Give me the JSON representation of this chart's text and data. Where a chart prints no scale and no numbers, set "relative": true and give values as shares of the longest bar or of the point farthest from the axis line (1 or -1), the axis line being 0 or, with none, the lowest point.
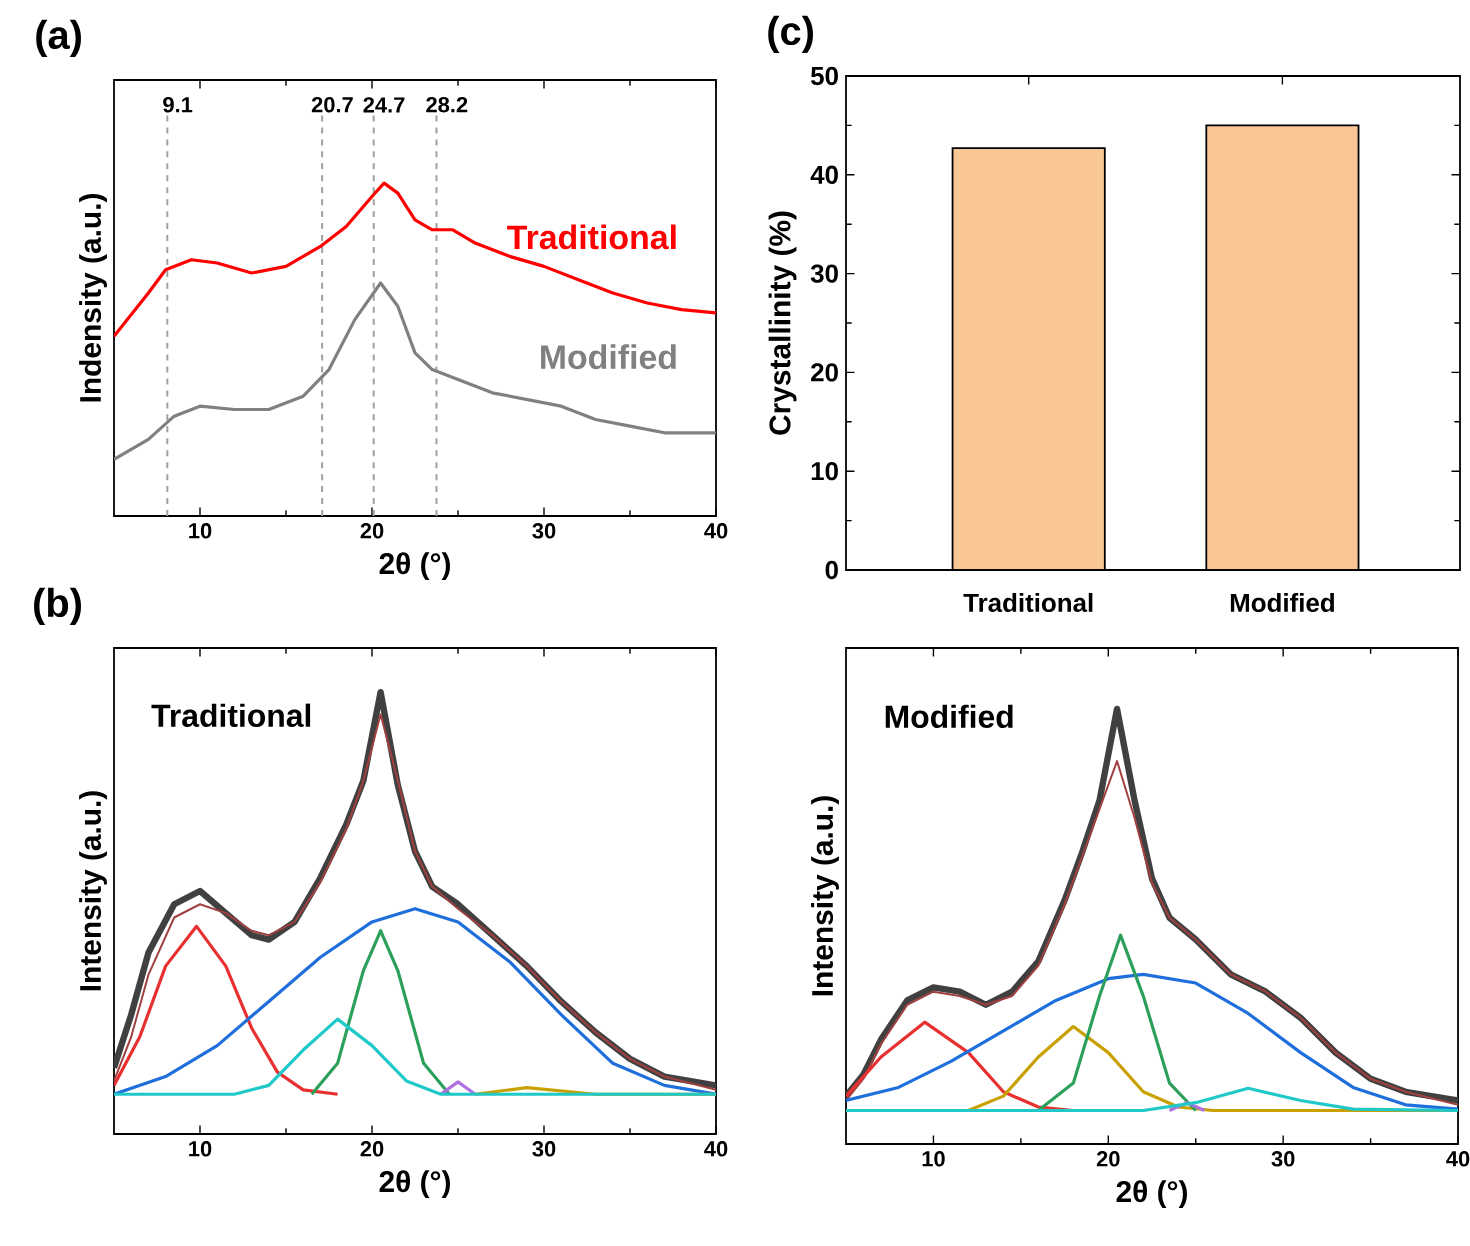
{
  "chart_data": [
    {
      "type": "line",
      "title": "(a)",
      "xlabel": "2θ (°)",
      "ylabel": "Indensity (a.u.)",
      "relative": true,
      "tick_labels": "x",
      "xlim": [
        5,
        40
      ],
      "xticks": [
        10,
        20,
        30,
        40
      ],
      "annotations": [
        "9.1",
        "20.7",
        "24.7",
        "28.2"
      ],
      "ref_lines": [
        {
          "axis": "x",
          "value": 8.1,
          "color": "#a0a0a0",
          "line_style": "dashed"
        },
        {
          "axis": "x",
          "value": 17.1,
          "color": "#a0a0a0",
          "line_style": "dashed"
        },
        {
          "axis": "x",
          "value": 20.1,
          "color": "#a0a0a0",
          "line_style": "dashed"
        },
        {
          "axis": "x",
          "value": 23.75,
          "color": "#a0a0a0",
          "line_style": "dashed"
        }
      ],
      "series": [
        {
          "name": "Traditional",
          "color": "#ff0000",
          "x": [
            5,
            7,
            8,
            9.5,
            11,
            13,
            15,
            17,
            18.5,
            20,
            20.7,
            21.5,
            22.5,
            23.5,
            24.7,
            26,
            28,
            30,
            32,
            34,
            36,
            38,
            40
          ],
          "values": [
            0.54,
            0.67,
            0.74,
            0.77,
            0.76,
            0.73,
            0.75,
            0.81,
            0.87,
            0.96,
            1.0,
            0.97,
            0.89,
            0.86,
            0.86,
            0.82,
            0.78,
            0.75,
            0.71,
            0.67,
            0.64,
            0.62,
            0.61
          ]
        },
        {
          "name": "Modified",
          "color": "#808080",
          "x": [
            5,
            7,
            8.5,
            10,
            12,
            14,
            16,
            17.5,
            19,
            20.5,
            21.5,
            22.5,
            23.5,
            25,
            27,
            29,
            31,
            33,
            35,
            37,
            40
          ],
          "values": [
            0.17,
            0.23,
            0.3,
            0.33,
            0.32,
            0.32,
            0.36,
            0.44,
            0.59,
            0.7,
            0.63,
            0.49,
            0.44,
            0.41,
            0.37,
            0.35,
            0.33,
            0.29,
            0.27,
            0.25,
            0.25
          ]
        }
      ]
    },
    {
      "type": "bar",
      "title": "(c)",
      "ylabel": "Crystallinity (%)",
      "categories": [
        "Traditional",
        "Modified"
      ],
      "values": [
        42.7,
        45.0
      ],
      "color": "#f8c794",
      "ylim": [
        0,
        50
      ],
      "yticks": [
        0,
        10,
        20,
        30,
        40,
        50
      ]
    },
    {
      "type": "line",
      "title": "(b)",
      "xlabel": "2θ (°)",
      "ylabel": "Intensity (a.u.)",
      "relative": true,
      "tick_labels": "x",
      "xlim": [
        5,
        40
      ],
      "xticks": [
        10,
        20,
        30,
        40
      ],
      "annotations": [
        "Traditional"
      ],
      "series": [
        {
          "color": "#404040",
          "x": [
            5,
            6,
            7,
            8.5,
            10,
            11.5,
            13,
            14,
            15.5,
            17,
            18.5,
            19.5,
            20.5,
            21.5,
            22.5,
            23.5,
            25,
            27,
            29,
            31,
            33,
            35,
            37,
            40
          ],
          "values": [
            0.15,
            0.27,
            0.41,
            0.52,
            0.55,
            0.5,
            0.45,
            0.44,
            0.48,
            0.58,
            0.7,
            0.8,
            1.0,
            0.79,
            0.64,
            0.56,
            0.52,
            0.45,
            0.38,
            0.3,
            0.23,
            0.17,
            0.13,
            0.11
          ]
        },
        {
          "color": "#a04040",
          "x": [
            5,
            6,
            7,
            8.5,
            10,
            11.5,
            13,
            14,
            15.5,
            17,
            18.5,
            19.5,
            20.5,
            21.5,
            22.5,
            23.5,
            25,
            27,
            29,
            31,
            33,
            35,
            37,
            40
          ],
          "values": [
            0.12,
            0.22,
            0.36,
            0.49,
            0.52,
            0.5,
            0.46,
            0.45,
            0.48,
            0.57,
            0.69,
            0.8,
            0.95,
            0.8,
            0.64,
            0.56,
            0.51,
            0.45,
            0.38,
            0.3,
            0.23,
            0.17,
            0.13,
            0.1
          ]
        },
        {
          "color": "#e83030",
          "x": [
            5,
            6.5,
            8,
            9.8,
            11.5,
            13,
            14.5,
            16,
            18
          ],
          "values": [
            0.11,
            0.22,
            0.38,
            0.47,
            0.38,
            0.24,
            0.14,
            0.1,
            0.09
          ]
        },
        {
          "color": "#1e6fdc",
          "x": [
            5,
            8,
            11,
            14,
            17,
            20,
            22.5,
            25,
            28,
            31,
            34,
            37,
            40
          ],
          "values": [
            0.09,
            0.13,
            0.2,
            0.3,
            0.4,
            0.48,
            0.51,
            0.48,
            0.39,
            0.27,
            0.16,
            0.11,
            0.09
          ]
        },
        {
          "color": "#c8a000",
          "x": [
            26,
            29,
            33,
            40
          ],
          "values": [
            0.09,
            0.105,
            0.09,
            0.09
          ]
        },
        {
          "color": "#2ca05a",
          "x": [
            16.5,
            18,
            19.5,
            20.5,
            21.5,
            23,
            24.5
          ],
          "values": [
            0.09,
            0.16,
            0.37,
            0.46,
            0.37,
            0.16,
            0.09
          ]
        },
        {
          "color": "#b070e0",
          "x": [
            24,
            25,
            26
          ],
          "values": [
            0.09,
            0.118,
            0.09
          ]
        },
        {
          "color": "#20c8c8",
          "x": [
            5,
            12,
            14,
            16,
            18,
            20,
            22,
            24,
            40
          ],
          "values": [
            0.09,
            0.09,
            0.11,
            0.19,
            0.26,
            0.2,
            0.12,
            0.09,
            0.09
          ]
        }
      ]
    },
    {
      "type": "line",
      "xlabel": "2θ (°)",
      "ylabel": "Intensity (a.u.)",
      "relative": true,
      "tick_labels": "x",
      "xlim": [
        5,
        40
      ],
      "xticks": [
        10,
        20,
        30,
        40
      ],
      "annotations": [
        "Modified"
      ],
      "series": [
        {
          "color": "#404040",
          "x": [
            5,
            6,
            7,
            8.5,
            10,
            11.5,
            13,
            14.5,
            16,
            17.5,
            18.5,
            19.5,
            20.5,
            21.5,
            22.5,
            23.5,
            25,
            27,
            29,
            31,
            33,
            35,
            37,
            40
          ],
          "values": [
            0.11,
            0.16,
            0.24,
            0.33,
            0.36,
            0.35,
            0.32,
            0.35,
            0.42,
            0.56,
            0.67,
            0.79,
            1.0,
            0.79,
            0.61,
            0.52,
            0.47,
            0.39,
            0.35,
            0.29,
            0.21,
            0.15,
            0.12,
            0.1
          ]
        },
        {
          "color": "#a04040",
          "x": [
            5,
            6,
            7,
            8.5,
            10,
            11.5,
            13,
            14.5,
            16,
            17.5,
            18.5,
            19.5,
            20.5,
            21.5,
            22.5,
            23.5,
            25,
            27,
            29,
            31,
            33,
            35,
            37,
            40
          ],
          "values": [
            0.1,
            0.15,
            0.23,
            0.32,
            0.35,
            0.34,
            0.32,
            0.34,
            0.41,
            0.55,
            0.66,
            0.77,
            0.88,
            0.75,
            0.6,
            0.52,
            0.47,
            0.39,
            0.35,
            0.29,
            0.21,
            0.15,
            0.12,
            0.09
          ]
        },
        {
          "color": "#e83030",
          "x": [
            5,
            7,
            9.5,
            12,
            14,
            16,
            18
          ],
          "values": [
            0.11,
            0.2,
            0.28,
            0.21,
            0.12,
            0.085,
            0.077
          ]
        },
        {
          "color": "#1e6fdc",
          "x": [
            5,
            8,
            11,
            14,
            17,
            20,
            22,
            25,
            28,
            31,
            34,
            37,
            40
          ],
          "values": [
            0.1,
            0.13,
            0.19,
            0.26,
            0.33,
            0.38,
            0.39,
            0.37,
            0.3,
            0.21,
            0.13,
            0.09,
            0.08
          ]
        },
        {
          "color": "#c8a000",
          "x": [
            12,
            14,
            16,
            18,
            20,
            22,
            24,
            26,
            40
          ],
          "values": [
            0.077,
            0.11,
            0.2,
            0.27,
            0.21,
            0.12,
            0.085,
            0.077,
            0.077
          ]
        },
        {
          "color": "#2ca05a",
          "x": [
            16,
            18,
            19.5,
            20.7,
            22,
            23.5,
            25
          ],
          "values": [
            0.077,
            0.14,
            0.34,
            0.48,
            0.34,
            0.14,
            0.077
          ]
        },
        {
          "color": "#b070e0",
          "x": [
            23.5,
            24.5,
            25.5
          ],
          "values": [
            0.077,
            0.095,
            0.077
          ]
        },
        {
          "color": "#20c8c8",
          "x": [
            5,
            22,
            25,
            28,
            31,
            34,
            40
          ],
          "values": [
            0.077,
            0.077,
            0.095,
            0.128,
            0.1,
            0.08,
            0.077
          ]
        }
      ]
    }
  ]
}
